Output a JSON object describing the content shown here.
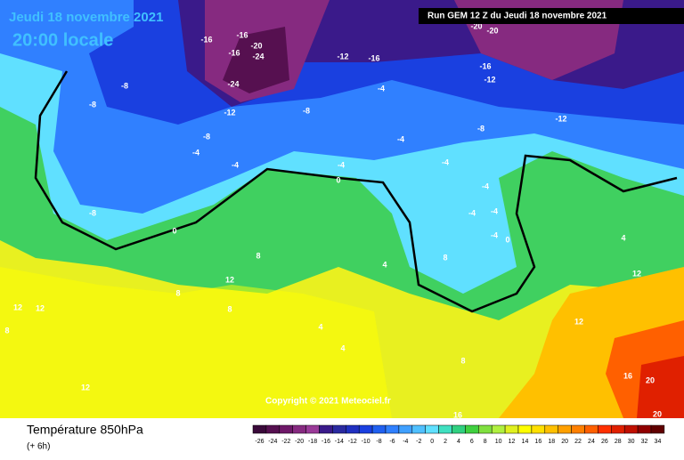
{
  "header": {
    "date": "Jeudi 18 novembre 2021",
    "time": "20:00 locale",
    "run": "Run GEM 12 Z du Jeudi 18 novembre 2021"
  },
  "copyright": "Copyright © 2021 Meteociel.fr",
  "footer": {
    "title": "Température 850hPa",
    "step": "(+ 6h)"
  },
  "legend": {
    "items": [
      {
        "value": -26,
        "color": "#3a0a3a"
      },
      {
        "value": -24,
        "color": "#561050"
      },
      {
        "value": -22,
        "color": "#6e1868"
      },
      {
        "value": -20,
        "color": "#862a80"
      },
      {
        "value": -18,
        "color": "#9a3a98"
      },
      {
        "value": -16,
        "color": "#3a1a8a"
      },
      {
        "value": -14,
        "color": "#2a2aa0"
      },
      {
        "value": -12,
        "color": "#2030c0"
      },
      {
        "value": -10,
        "color": "#1a40e0"
      },
      {
        "value": -8,
        "color": "#2060f0"
      },
      {
        "value": -6,
        "color": "#3080ff"
      },
      {
        "value": -4,
        "color": "#40a0ff"
      },
      {
        "value": -2,
        "color": "#50c0ff"
      },
      {
        "value": 0,
        "color": "#60e0ff"
      },
      {
        "value": 2,
        "color": "#40e0c0"
      },
      {
        "value": 4,
        "color": "#30d080"
      },
      {
        "value": 6,
        "color": "#40d040"
      },
      {
        "value": 8,
        "color": "#80e040"
      },
      {
        "value": 10,
        "color": "#b0f040"
      },
      {
        "value": 12,
        "color": "#e0f020"
      },
      {
        "value": 14,
        "color": "#ffff00"
      },
      {
        "value": 16,
        "color": "#ffe000"
      },
      {
        "value": 18,
        "color": "#ffc000"
      },
      {
        "value": 20,
        "color": "#ffa000"
      },
      {
        "value": 22,
        "color": "#ff8000"
      },
      {
        "value": 24,
        "color": "#ff6000"
      },
      {
        "value": 26,
        "color": "#ff3000"
      },
      {
        "value": 28,
        "color": "#e02000"
      },
      {
        "value": 30,
        "color": "#c01000"
      },
      {
        "value": 32,
        "color": "#900000"
      },
      {
        "value": 34,
        "color": "#600000"
      }
    ]
  },
  "contour_labels": [
    -16,
    -16,
    -20,
    -24,
    -24,
    -16,
    -12,
    -12,
    -8,
    -16,
    -20,
    -20,
    -16,
    -12,
    -12,
    -8,
    -8,
    -8,
    -4,
    -4,
    -8,
    -8,
    -4,
    -4,
    -4,
    -4,
    0,
    -4,
    -4,
    -4,
    -4,
    0,
    0,
    4,
    8,
    8,
    4,
    12,
    12,
    12,
    8,
    8,
    4,
    4,
    8,
    12,
    12,
    16,
    16,
    20,
    20,
    12,
    8
  ]
}
